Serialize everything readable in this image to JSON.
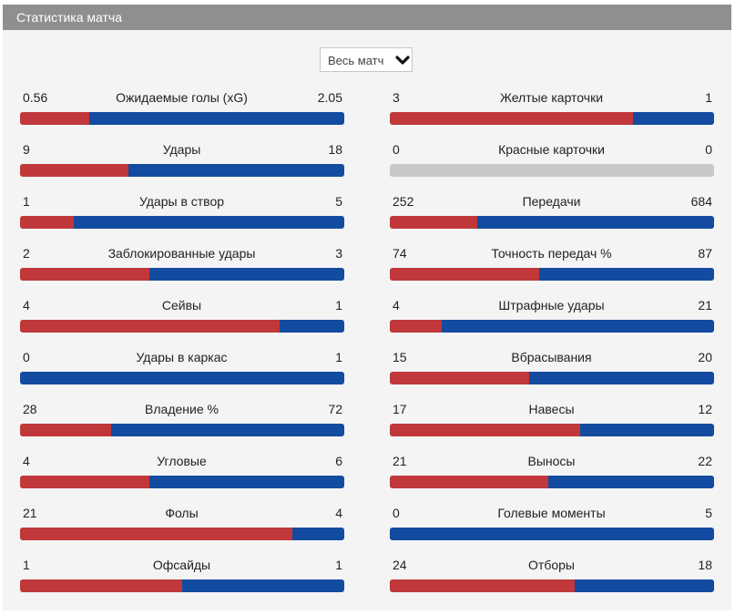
{
  "header": {
    "title": "Статистика матча"
  },
  "filter": {
    "selected": "Весь матч",
    "icon": "chevron-down-icon"
  },
  "colors": {
    "home": "#c0383a",
    "away": "#134ba0",
    "empty": "#c8c8c8"
  },
  "stats": {
    "left": [
      {
        "id": "xg",
        "label": "Ожидаемые голы (xG)",
        "home": "0.56",
        "away": "2.05"
      },
      {
        "id": "shots",
        "label": "Удары",
        "home": "9",
        "away": "18"
      },
      {
        "id": "shots-on-target",
        "label": "Удары в створ",
        "home": "1",
        "away": "5"
      },
      {
        "id": "blocked-shots",
        "label": "Заблокированные удары",
        "home": "2",
        "away": "3"
      },
      {
        "id": "saves",
        "label": "Сейвы",
        "home": "4",
        "away": "1"
      },
      {
        "id": "woodwork",
        "label": "Удары в каркас",
        "home": "0",
        "away": "1"
      },
      {
        "id": "possession",
        "label": "Владение %",
        "home": "28",
        "away": "72"
      },
      {
        "id": "corners",
        "label": "Угловые",
        "home": "4",
        "away": "6"
      },
      {
        "id": "fouls",
        "label": "Фолы",
        "home": "21",
        "away": "4"
      },
      {
        "id": "offsides",
        "label": "Офсайды",
        "home": "1",
        "away": "1"
      }
    ],
    "right": [
      {
        "id": "yellow-cards",
        "label": "Желтые карточки",
        "home": "3",
        "away": "1"
      },
      {
        "id": "red-cards",
        "label": "Красные карточки",
        "home": "0",
        "away": "0"
      },
      {
        "id": "passes",
        "label": "Передачи",
        "home": "252",
        "away": "684"
      },
      {
        "id": "pass-accuracy",
        "label": "Точность передач %",
        "home": "74",
        "away": "87"
      },
      {
        "id": "free-kicks",
        "label": "Штрафные удары",
        "home": "4",
        "away": "21"
      },
      {
        "id": "throw-ins",
        "label": "Вбрасывания",
        "home": "15",
        "away": "20"
      },
      {
        "id": "crosses",
        "label": "Навесы",
        "home": "17",
        "away": "12"
      },
      {
        "id": "clearances",
        "label": "Выносы",
        "home": "21",
        "away": "22"
      },
      {
        "id": "big-chances",
        "label": "Голевые моменты",
        "home": "0",
        "away": "5"
      },
      {
        "id": "tackles",
        "label": "Отборы",
        "home": "24",
        "away": "18"
      }
    ]
  }
}
